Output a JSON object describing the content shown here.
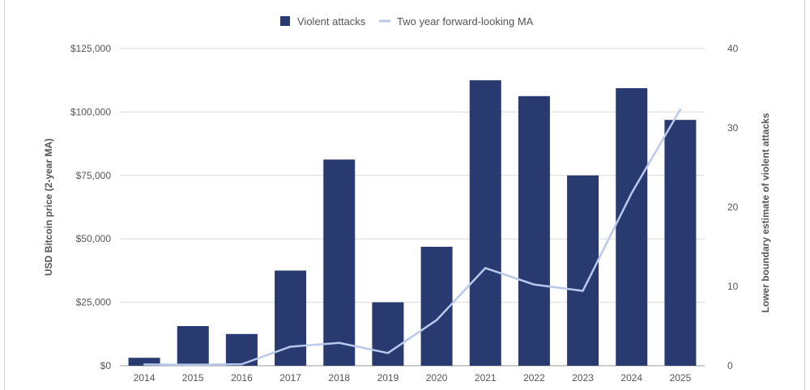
{
  "chart_data": {
    "type": "bar",
    "categories": [
      "2014",
      "2015",
      "2016",
      "2017",
      "2018",
      "2019",
      "2020",
      "2021",
      "2022",
      "2023",
      "2024",
      "2025"
    ],
    "series": [
      {
        "name": "Violent attacks",
        "type": "bar",
        "axis": "right",
        "color": "#283a70",
        "values": [
          1,
          5,
          4,
          12,
          26,
          8,
          15,
          36,
          34,
          24,
          35,
          31
        ]
      },
      {
        "name": "Two year forward-looking MA",
        "type": "line",
        "axis": "left",
        "color": "#b8c9ec",
        "values": [
          500,
          400,
          600,
          7500,
          9000,
          5000,
          18000,
          38500,
          32000,
          29500,
          68000,
          101000
        ]
      }
    ],
    "left_axis": {
      "label": "USD Bitcoin price (2-year MA)",
      "ylim": [
        0,
        125000
      ],
      "ticks": [
        "$0",
        "$25,000",
        "$50,000",
        "$75,000",
        "$100,000",
        "$125,000"
      ]
    },
    "right_axis": {
      "label": "Lower boundary estimate of violent attacks",
      "ylim": [
        0,
        40
      ],
      "ticks": [
        "0",
        "10",
        "20",
        "30",
        "40"
      ]
    },
    "grid": true,
    "legend_position": "top-center"
  }
}
